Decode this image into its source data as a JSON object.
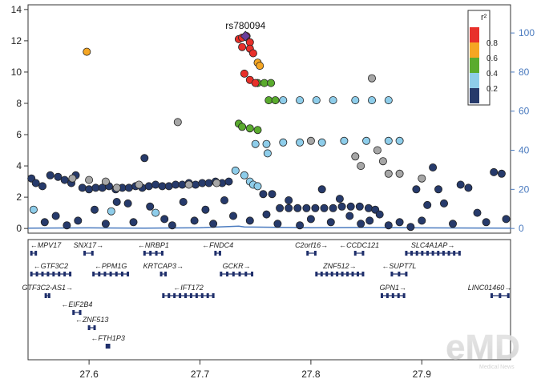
{
  "chart_data": {
    "type": "scatter",
    "title": "",
    "xlabel": "",
    "ylabel": "",
    "right_ylabel": "",
    "xlim": [
      27.545,
      27.98
    ],
    "ylim": [
      -0.3,
      14.3
    ],
    "right_ylim": [
      0,
      100
    ],
    "x_ticks": [
      "27.6",
      "27.7",
      "27.8",
      "27.9"
    ],
    "y_ticks": [
      "0",
      "2",
      "4",
      "6",
      "8",
      "10",
      "12",
      "14"
    ],
    "right_y_ticks": [
      "0",
      "20",
      "40",
      "60",
      "80",
      "100"
    ],
    "lead_snp": {
      "label": "rs780094",
      "x": 27.741,
      "y": 12.3
    },
    "legend": {
      "title": "r²",
      "placement": "top-right",
      "ticks": [
        "0.8",
        "0.6",
        "0.4",
        "0.2"
      ],
      "colors": {
        "r2_08_1": "#e8302a",
        "r2_06_08": "#f5a623",
        "r2_04_06": "#5aab2e",
        "r2_02_04": "#8ecdea",
        "r2_00_02": "#263a6b",
        "no_r2": "#a6a6a6"
      }
    },
    "recombination_rate_color": "#4b7bbf",
    "recombination_rate": [
      [
        27.545,
        0.2
      ],
      [
        27.6,
        0.3
      ],
      [
        27.65,
        0.2
      ],
      [
        27.7,
        0.4
      ],
      [
        27.735,
        1.2
      ],
      [
        27.74,
        0.8
      ],
      [
        27.8,
        0.4
      ],
      [
        27.85,
        0.5
      ],
      [
        27.9,
        0.3
      ],
      [
        27.98,
        0.2
      ]
    ],
    "series": [
      {
        "name": "r2_08_1",
        "points": [
          [
            27.735,
            12.1
          ],
          [
            27.738,
            12.2
          ],
          [
            27.742,
            12.3
          ],
          [
            27.745,
            11.9
          ],
          [
            27.738,
            11.6
          ],
          [
            27.745,
            11.5
          ],
          [
            27.748,
            11.2
          ],
          [
            27.74,
            9.9
          ],
          [
            27.745,
            9.5
          ],
          [
            27.75,
            9.3
          ]
        ]
      },
      {
        "name": "r2_06_08",
        "points": [
          [
            27.598,
            11.3
          ],
          [
            27.752,
            10.6
          ],
          [
            27.754,
            10.4
          ]
        ]
      },
      {
        "name": "r2_04_06",
        "points": [
          [
            27.752,
            9.3
          ],
          [
            27.758,
            9.3
          ],
          [
            27.764,
            9.3
          ],
          [
            27.762,
            8.2
          ],
          [
            27.768,
            8.2
          ],
          [
            27.735,
            6.7
          ],
          [
            27.738,
            6.5
          ],
          [
            27.745,
            6.4
          ],
          [
            27.752,
            6.3
          ]
        ]
      },
      {
        "name": "r2_02_04",
        "points": [
          [
            27.775,
            8.2
          ],
          [
            27.79,
            8.2
          ],
          [
            27.805,
            8.2
          ],
          [
            27.82,
            8.2
          ],
          [
            27.84,
            8.2
          ],
          [
            27.855,
            8.2
          ],
          [
            27.87,
            8.2
          ],
          [
            27.75,
            5.4
          ],
          [
            27.76,
            5.4
          ],
          [
            27.775,
            5.5
          ],
          [
            27.79,
            5.5
          ],
          [
            27.81,
            5.5
          ],
          [
            27.83,
            5.6
          ],
          [
            27.85,
            5.6
          ],
          [
            27.87,
            5.6
          ],
          [
            27.88,
            5.6
          ],
          [
            27.732,
            3.7
          ],
          [
            27.74,
            3.4
          ],
          [
            27.745,
            3.0
          ],
          [
            27.748,
            2.8
          ],
          [
            27.752,
            2.7
          ],
          [
            27.761,
            4.8
          ],
          [
            27.55,
            1.2
          ],
          [
            27.62,
            1.1
          ],
          [
            27.66,
            1.0
          ]
        ]
      },
      {
        "name": "no_r2",
        "points": [
          [
            27.68,
            6.8
          ],
          [
            27.8,
            5.6
          ],
          [
            27.855,
            9.6
          ],
          [
            27.86,
            5.0
          ],
          [
            27.865,
            4.3
          ],
          [
            27.585,
            3.2
          ],
          [
            27.6,
            3.1
          ],
          [
            27.615,
            3.0
          ],
          [
            27.625,
            2.6
          ],
          [
            27.645,
            2.8
          ],
          [
            27.69,
            2.8
          ],
          [
            27.715,
            2.9
          ],
          [
            27.87,
            3.5
          ],
          [
            27.88,
            3.5
          ],
          [
            27.9,
            3.2
          ],
          [
            27.84,
            4.6
          ],
          [
            27.845,
            4.0
          ]
        ]
      },
      {
        "name": "r2_00_02",
        "points": [
          [
            27.548,
            3.2
          ],
          [
            27.552,
            2.9
          ],
          [
            27.558,
            2.7
          ],
          [
            27.565,
            3.4
          ],
          [
            27.572,
            3.3
          ],
          [
            27.578,
            3.1
          ],
          [
            27.584,
            2.9
          ],
          [
            27.588,
            3.4
          ],
          [
            27.594,
            2.6
          ],
          [
            27.6,
            2.5
          ],
          [
            27.606,
            2.6
          ],
          [
            27.612,
            2.6
          ],
          [
            27.618,
            2.7
          ],
          [
            27.624,
            2.5
          ],
          [
            27.63,
            2.6
          ],
          [
            27.636,
            2.6
          ],
          [
            27.642,
            2.7
          ],
          [
            27.648,
            2.6
          ],
          [
            27.654,
            2.7
          ],
          [
            27.66,
            2.8
          ],
          [
            27.666,
            2.7
          ],
          [
            27.672,
            2.7
          ],
          [
            27.678,
            2.8
          ],
          [
            27.684,
            2.8
          ],
          [
            27.69,
            2.9
          ],
          [
            27.696,
            2.8
          ],
          [
            27.702,
            2.9
          ],
          [
            27.708,
            2.9
          ],
          [
            27.714,
            3.0
          ],
          [
            27.72,
            2.9
          ],
          [
            27.726,
            3.0
          ],
          [
            27.757,
            2.2
          ],
          [
            27.765,
            2.2
          ],
          [
            27.772,
            1.3
          ],
          [
            27.78,
            1.3
          ],
          [
            27.788,
            1.3
          ],
          [
            27.796,
            1.3
          ],
          [
            27.804,
            1.3
          ],
          [
            27.812,
            1.3
          ],
          [
            27.82,
            1.3
          ],
          [
            27.828,
            1.4
          ],
          [
            27.836,
            1.4
          ],
          [
            27.844,
            1.4
          ],
          [
            27.852,
            1.3
          ],
          [
            27.858,
            1.2
          ],
          [
            27.65,
            4.5
          ],
          [
            27.635,
            1.6
          ],
          [
            27.56,
            0.4
          ],
          [
            27.57,
            0.8
          ],
          [
            27.58,
            0.2
          ],
          [
            27.59,
            0.5
          ],
          [
            27.605,
            1.2
          ],
          [
            27.615,
            0.3
          ],
          [
            27.625,
            1.7
          ],
          [
            27.64,
            0.4
          ],
          [
            27.655,
            1.4
          ],
          [
            27.668,
            0.6
          ],
          [
            27.675,
            0.2
          ],
          [
            27.685,
            1.7
          ],
          [
            27.695,
            0.5
          ],
          [
            27.705,
            1.2
          ],
          [
            27.712,
            0.3
          ],
          [
            27.722,
            1.8
          ],
          [
            27.73,
            0.8
          ],
          [
            27.745,
            0.5
          ],
          [
            27.76,
            0.9
          ],
          [
            27.77,
            0.3
          ],
          [
            27.78,
            1.8
          ],
          [
            27.79,
            0.2
          ],
          [
            27.8,
            0.6
          ],
          [
            27.81,
            2.5
          ],
          [
            27.818,
            0.4
          ],
          [
            27.826,
            1.9
          ],
          [
            27.835,
            0.8
          ],
          [
            27.845,
            0.3
          ],
          [
            27.853,
            0.5
          ],
          [
            27.862,
            0.9
          ],
          [
            27.87,
            0.2
          ],
          [
            27.88,
            0.4
          ],
          [
            27.89,
            0.1
          ],
          [
            27.895,
            2.5
          ],
          [
            27.9,
            0.5
          ],
          [
            27.905,
            1.5
          ],
          [
            27.91,
            3.9
          ],
          [
            27.915,
            2.5
          ],
          [
            27.92,
            1.6
          ],
          [
            27.928,
            0.3
          ],
          [
            27.935,
            2.8
          ],
          [
            27.942,
            2.6
          ],
          [
            27.95,
            1.0
          ],
          [
            27.958,
            0.4
          ],
          [
            27.965,
            3.6
          ],
          [
            27.972,
            3.5
          ],
          [
            27.976,
            0.6
          ]
        ]
      }
    ],
    "genes": [
      {
        "name": "MPV17",
        "strand": "-",
        "start": 27.548,
        "end": 27.552,
        "row": 0
      },
      {
        "name": "SNX17",
        "strand": "+",
        "start": 27.596,
        "end": 27.603,
        "row": 0
      },
      {
        "name": "NRBP1",
        "strand": "-",
        "start": 27.65,
        "end": 27.666,
        "row": 0
      },
      {
        "name": "FNDC4",
        "strand": "-",
        "start": 27.714,
        "end": 27.718,
        "row": 0
      },
      {
        "name": "C2orf16",
        "strand": "+",
        "start": 27.797,
        "end": 27.804,
        "row": 0
      },
      {
        "name": "CCDC121",
        "strand": "-",
        "start": 27.84,
        "end": 27.847,
        "row": 0
      },
      {
        "name": "SLC4A1AP",
        "strand": "+",
        "start": 27.886,
        "end": 27.934,
        "row": 0
      },
      {
        "name": "GTF3C2",
        "strand": "-",
        "start": 27.548,
        "end": 27.583,
        "row": 1
      },
      {
        "name": "PPM1G",
        "strand": "-",
        "start": 27.604,
        "end": 27.635,
        "row": 1
      },
      {
        "name": "KRTCAP3",
        "strand": "+",
        "start": 27.665,
        "end": 27.669,
        "row": 1
      },
      {
        "name": "GCKR",
        "strand": "+",
        "start": 27.719,
        "end": 27.747,
        "row": 1
      },
      {
        "name": "ZNF512",
        "strand": "+",
        "start": 27.805,
        "end": 27.847,
        "row": 1
      },
      {
        "name": "SUPT7L",
        "strand": "-",
        "start": 27.873,
        "end": 27.886,
        "row": 1
      },
      {
        "name": "GTF3C2-AS1",
        "strand": "+",
        "start": 27.561,
        "end": 27.564,
        "row": 2
      },
      {
        "name": "IFT172",
        "strand": "-",
        "start": 27.667,
        "end": 27.712,
        "row": 2
      },
      {
        "name": "GPN1",
        "strand": "+",
        "start": 27.864,
        "end": 27.884,
        "row": 2
      },
      {
        "name": "LINC01460",
        "strand": "+",
        "start": 27.963,
        "end": 27.978,
        "row": 2
      },
      {
        "name": "EIF2B4",
        "strand": "-",
        "start": 27.586,
        "end": 27.592,
        "row": 3
      },
      {
        "name": "ZNF513",
        "strand": "-",
        "start": 27.6,
        "end": 27.605,
        "row": 4
      },
      {
        "name": "FTH1P3",
        "strand": "-",
        "start": 27.616,
        "end": 27.618,
        "row": 5
      }
    ]
  },
  "watermark": {
    "text": "eMD",
    "subtext": "Medical News"
  }
}
